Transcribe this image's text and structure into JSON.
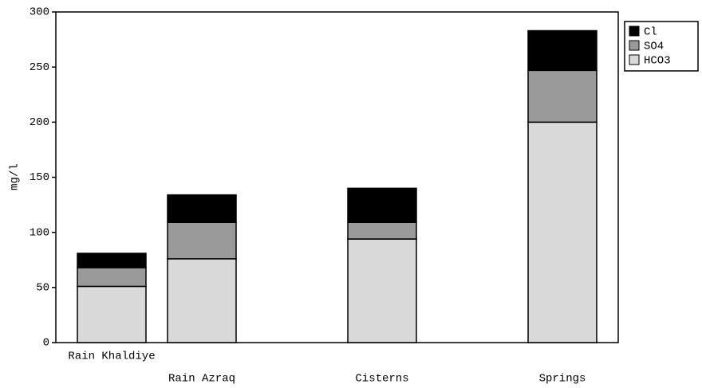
{
  "chart_data": {
    "type": "stacked_bar",
    "y_label": "mg/l",
    "categories": [
      "Rain Khaldiye",
      "Rain Azraq",
      null,
      "Cisterns",
      null,
      "Springs"
    ],
    "series": [
      {
        "name": "HCO3",
        "color": "#d9d9d9",
        "values": [
          51,
          76,
          null,
          94,
          null,
          200
        ]
      },
      {
        "name": "SO4",
        "color": "#9a9a9a",
        "values": [
          17,
          33,
          null,
          15,
          null,
          47
        ]
      },
      {
        "name": "Cl",
        "color": "#000000",
        "values": [
          13,
          25,
          null,
          31,
          null,
          36
        ]
      }
    ],
    "ylim": [
      0,
      300
    ],
    "yticks": [
      0,
      50,
      100,
      150,
      200,
      250,
      300
    ],
    "legend": "upper right outside"
  }
}
